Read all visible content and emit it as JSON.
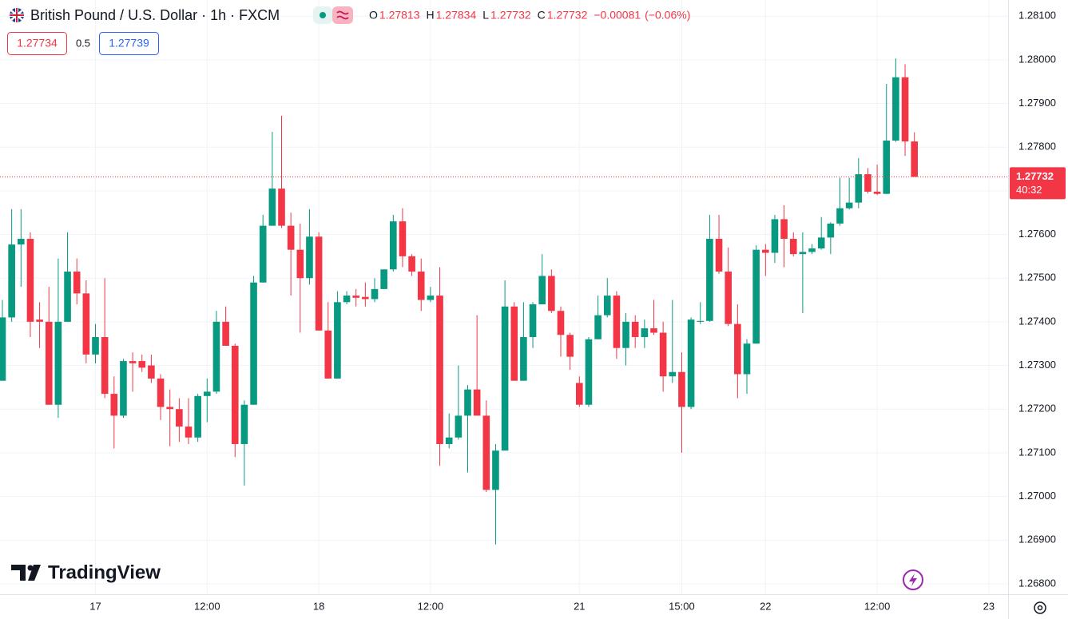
{
  "header": {
    "title": "British Pound / U.S. Dollar · 1h · FXCM",
    "ohlc_legend": [
      {
        "key": "O",
        "value": 1.27813
      },
      {
        "key": "H",
        "value": 1.27834
      },
      {
        "key": "L",
        "value": 1.27732
      },
      {
        "key": "C",
        "value": 1.27732
      }
    ],
    "change": "−0.00081",
    "change_percent": "(−0.06%)",
    "bid": 1.27734,
    "spread": 0.5,
    "ask": 1.27739
  },
  "logo": "TradingView",
  "chart_data": {
    "type": "candlestick",
    "up_color": "#089981",
    "down_color": "#f23645",
    "grid": true,
    "last_price": {
      "value": 1.27732,
      "countdown": "40:32"
    },
    "ylim": [
      1.26776,
      1.28137
    ],
    "yticks": [
      {
        "value": 1.281,
        "label": "1.28100"
      },
      {
        "value": 1.28,
        "label": "1.28000"
      },
      {
        "value": 1.279,
        "label": "1.27900"
      },
      {
        "value": 1.278,
        "label": "1.27800"
      },
      {
        "value": 1.277,
        "label": "1.27700"
      },
      {
        "value": 1.276,
        "label": "1.27600"
      },
      {
        "value": 1.275,
        "label": "1.27500"
      },
      {
        "value": 1.274,
        "label": "1.27400"
      },
      {
        "value": 1.273,
        "label": "1.27300"
      },
      {
        "value": 1.272,
        "label": "1.27200"
      },
      {
        "value": 1.271,
        "label": "1.27100"
      },
      {
        "value": 1.27,
        "label": "1.27000"
      },
      {
        "value": 1.269,
        "label": "1.26900"
      },
      {
        "value": 1.268,
        "label": "1.26800"
      }
    ],
    "categories": [
      null,
      null,
      null,
      null,
      null,
      null,
      null,
      null,
      null,
      null,
      "17",
      null,
      null,
      null,
      null,
      null,
      null,
      null,
      null,
      null,
      null,
      null,
      "12:00",
      null,
      null,
      null,
      null,
      null,
      null,
      null,
      null,
      null,
      null,
      null,
      "18",
      null,
      null,
      null,
      null,
      null,
      null,
      null,
      null,
      null,
      null,
      null,
      "12:00",
      null,
      null,
      null,
      null,
      null,
      null,
      null,
      null,
      null,
      null,
      null,
      null,
      null,
      null,
      null,
      "21",
      null,
      null,
      null,
      null,
      null,
      null,
      null,
      null,
      null,
      null,
      "15:00",
      null,
      null,
      null,
      null,
      null,
      null,
      null,
      null,
      "22",
      null,
      null,
      null,
      null,
      null,
      null,
      null,
      null,
      null,
      null,
      null,
      "12:00",
      null,
      null,
      null,
      null,
      null,
      null,
      null,
      null,
      null,
      null,
      null,
      "23"
    ],
    "open": [
      1.27265,
      1.2741,
      1.27577,
      1.2759,
      1.27405,
      1.274,
      1.2721,
      1.274,
      1.27515,
      1.27465,
      1.27325,
      1.27365,
      1.27235,
      1.27185,
      1.2731,
      1.2731,
      1.273,
      1.2727,
      1.27205,
      1.272,
      1.2716,
      1.27135,
      1.2723,
      1.2724,
      1.274,
      1.27345,
      1.2712,
      1.2721,
      1.2749,
      1.2762,
      1.27705,
      1.2762,
      1.27565,
      1.275,
      1.27595,
      1.2738,
      1.2727,
      1.27445,
      1.2746,
      1.27457,
      1.27452,
      1.27475,
      1.2752,
      1.2763,
      1.2755,
      1.27515,
      1.2745,
      1.2746,
      1.2712,
      1.27135,
      1.27185,
      1.27245,
      1.27185,
      1.27015,
      1.27105,
      1.27435,
      1.27265,
      1.27365,
      1.2744,
      1.27505,
      1.27425,
      1.2737,
      1.2726,
      1.2721,
      1.2736,
      1.27415,
      1.2746,
      1.2734,
      1.274,
      1.27365,
      1.27385,
      1.27375,
      1.27275,
      1.27285,
      1.27205,
      1.274,
      1.27402,
      1.2759,
      1.27515,
      1.27395,
      1.2728,
      1.2735,
      1.27565,
      1.27558,
      1.27635,
      1.2759,
      1.27555,
      1.2756,
      1.27568,
      1.27593,
      1.27625,
      1.2766,
      1.27673,
      1.27738,
      1.27698,
      1.27693,
      1.27815,
      1.2796,
      1.27813,
      null,
      null,
      null,
      null,
      null,
      null,
      null,
      null
    ],
    "high": [
      1.2745,
      1.27658,
      1.27658,
      1.27605,
      1.27445,
      1.2748,
      1.27545,
      1.27605,
      1.27545,
      1.27495,
      1.27395,
      1.275,
      1.27275,
      1.27315,
      1.2733,
      1.27325,
      1.27325,
      1.2728,
      1.27245,
      1.27225,
      1.27225,
      1.27235,
      1.2727,
      1.27425,
      1.27435,
      1.2735,
      1.2722,
      1.27505,
      1.27645,
      1.27835,
      1.27872,
      1.2765,
      1.27625,
      1.27658,
      1.27605,
      1.27445,
      1.2747,
      1.2747,
      1.27475,
      1.2749,
      1.275,
      1.2752,
      1.27645,
      1.2766,
      1.27555,
      1.27545,
      1.2748,
      1.27525,
      1.2719,
      1.273,
      1.27255,
      1.27415,
      1.2722,
      1.2712,
      1.27495,
      1.27445,
      1.27445,
      1.27445,
      1.27555,
      1.2752,
      1.27435,
      1.27375,
      1.27275,
      1.27365,
      1.2746,
      1.275,
      1.2747,
      1.2742,
      1.27415,
      1.27405,
      1.2745,
      1.274,
      1.2745,
      1.2733,
      1.2741,
      1.27445,
      1.27645,
      1.27645,
      1.2757,
      1.2744,
      1.2736,
      1.27575,
      1.27578,
      1.27645,
      1.27667,
      1.27605,
      1.27605,
      1.27578,
      1.2764,
      1.27628,
      1.2773,
      1.2773,
      1.27775,
      1.27752,
      1.2776,
      1.27945,
      1.28003,
      1.2799,
      1.27834,
      null,
      null,
      null,
      null,
      null,
      null,
      null,
      null
    ],
    "low": [
      1.27265,
      1.274,
      1.2748,
      1.27365,
      1.2734,
      1.2721,
      1.2718,
      1.274,
      1.2744,
      1.27305,
      1.27305,
      1.27225,
      1.2711,
      1.2718,
      1.2724,
      1.27285,
      1.2726,
      1.27175,
      1.27115,
      1.27125,
      1.2712,
      1.27125,
      1.2717,
      1.27235,
      1.27345,
      1.2709,
      1.27025,
      1.2721,
      1.2749,
      1.2762,
      1.27615,
      1.2746,
      1.27375,
      1.27485,
      1.2738,
      1.2727,
      1.2727,
      1.2744,
      1.27435,
      1.27435,
      1.27445,
      1.27475,
      1.27515,
      1.27525,
      1.27505,
      1.27425,
      1.27445,
      1.2707,
      1.2711,
      1.2713,
      1.27055,
      1.27185,
      1.2701,
      1.2689,
      1.27105,
      1.27265,
      1.27265,
      1.2734,
      1.2744,
      1.2742,
      1.2732,
      1.2729,
      1.27205,
      1.27205,
      1.2736,
      1.2741,
      1.27315,
      1.273,
      1.2734,
      1.2734,
      1.2737,
      1.2724,
      1.2726,
      1.271,
      1.272,
      1.27395,
      1.274,
      1.2751,
      1.2739,
      1.27225,
      1.27235,
      1.2735,
      1.27505,
      1.27535,
      1.27525,
      1.2755,
      1.2742,
      1.27555,
      1.27565,
      1.27555,
      1.2762,
      1.27657,
      1.2766,
      1.27694,
      1.2769,
      1.27693,
      1.27812,
      1.2778,
      1.27732,
      null,
      null,
      null,
      null,
      null,
      null,
      null,
      null
    ],
    "close": [
      1.2741,
      1.27577,
      1.2759,
      1.274,
      1.274,
      1.2721,
      1.274,
      1.27515,
      1.27465,
      1.27325,
      1.27365,
      1.27235,
      1.27185,
      1.2731,
      1.27305,
      1.27295,
      1.2727,
      1.27205,
      1.272,
      1.2716,
      1.27135,
      1.2723,
      1.2724,
      1.274,
      1.27345,
      1.2712,
      1.2721,
      1.2749,
      1.2762,
      1.27705,
      1.2762,
      1.27565,
      1.275,
      1.27595,
      1.2738,
      1.2727,
      1.27445,
      1.2746,
      1.27455,
      1.27452,
      1.27475,
      1.2752,
      1.2763,
      1.2755,
      1.27515,
      1.2745,
      1.2746,
      1.2712,
      1.27135,
      1.27185,
      1.27245,
      1.27185,
      1.27015,
      1.27105,
      1.27435,
      1.27265,
      1.27365,
      1.2744,
      1.27505,
      1.27425,
      1.2737,
      1.2732,
      1.2721,
      1.2736,
      1.27415,
      1.2746,
      1.2734,
      1.274,
      1.27365,
      1.27385,
      1.27375,
      1.27275,
      1.27285,
      1.27205,
      1.27405,
      1.27402,
      1.2759,
      1.27515,
      1.27395,
      1.2728,
      1.2735,
      1.27565,
      1.27558,
      1.27635,
      1.2759,
      1.27555,
      1.2756,
      1.27568,
      1.27593,
      1.27625,
      1.2766,
      1.27673,
      1.27738,
      1.27698,
      1.27693,
      1.27815,
      1.2796,
      1.27813,
      1.27732,
      null,
      null,
      null,
      null,
      null,
      null,
      null,
      null
    ]
  }
}
